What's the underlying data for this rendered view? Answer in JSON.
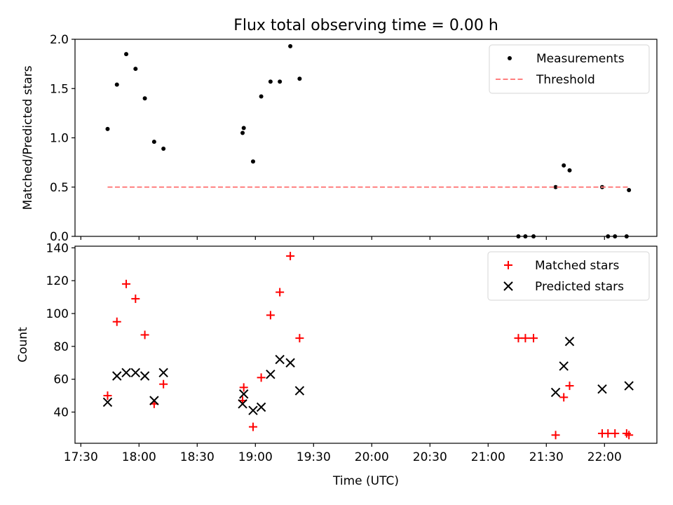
{
  "title": "Flux total observing time = 0.00 h",
  "xlabel": "Time (UTC)",
  "colors": {
    "measurement": "#000000",
    "threshold": "#ff7f7f",
    "matched": "#ff0000",
    "predicted": "#000000"
  },
  "chart_data": [
    {
      "type": "scatter",
      "panel": "top",
      "title": "Flux total observing time = 0.00 h",
      "xlabel": "",
      "ylabel": "Matched/Predicted stars",
      "xlim": [
        17.45,
        22.45
      ],
      "ylim": [
        0,
        2.0
      ],
      "xticks": [
        17.5,
        18,
        18.5,
        19,
        19.5,
        20,
        20.5,
        21,
        21.5,
        22
      ],
      "yticks": [
        0,
        0.5,
        1.0,
        1.5,
        2.0
      ],
      "ytick_labels": [
        "0.0",
        "0.5",
        "1.0",
        "1.5",
        "2.0"
      ],
      "legend": {
        "position": "top-right",
        "entries": [
          "Measurements",
          "Threshold"
        ]
      },
      "series": [
        {
          "name": "Measurements",
          "marker": "dot",
          "x": [
            17.73,
            17.81,
            17.89,
            17.97,
            18.05,
            18.13,
            18.21,
            18.89,
            18.9,
            18.98,
            19.05,
            19.13,
            19.21,
            19.3,
            19.38,
            21.26,
            21.32,
            21.39,
            21.58,
            21.65,
            21.7,
            21.98,
            22.03,
            22.09,
            22.19,
            22.21
          ],
          "y": [
            1.09,
            1.54,
            1.85,
            1.7,
            1.4,
            0.96,
            0.89,
            1.05,
            1.1,
            0.76,
            1.42,
            1.57,
            1.57,
            1.93,
            1.6,
            0.0,
            0.0,
            0.0,
            0.5,
            0.72,
            0.67,
            0.5,
            0.0,
            0.0,
            0.0,
            0.47
          ]
        },
        {
          "name": "Threshold",
          "style": "dashed-line",
          "x": [
            17.73,
            22.21
          ],
          "y": [
            0.5,
            0.5
          ]
        }
      ]
    },
    {
      "type": "scatter",
      "panel": "bottom",
      "xlabel": "Time (UTC)",
      "ylabel": "Count",
      "xlim": [
        17.45,
        22.45
      ],
      "ylim": [
        21,
        141
      ],
      "xticks": [
        17.5,
        18,
        18.5,
        19,
        19.5,
        20,
        20.5,
        21,
        21.5,
        22
      ],
      "xtick_labels": [
        "17:30",
        "18:00",
        "18:30",
        "19:00",
        "19:30",
        "20:00",
        "20:30",
        "21:00",
        "21:30",
        "22:00"
      ],
      "yticks": [
        40,
        60,
        80,
        100,
        120,
        140
      ],
      "legend": {
        "position": "top-right",
        "entries": [
          "Matched stars",
          "Predicted stars"
        ]
      },
      "series": [
        {
          "name": "Matched stars",
          "marker": "plus",
          "x": [
            17.73,
            17.81,
            17.89,
            17.97,
            18.05,
            18.13,
            18.21,
            18.89,
            18.9,
            18.98,
            19.05,
            19.13,
            19.21,
            19.3,
            19.38,
            21.26,
            21.32,
            21.39,
            21.58,
            21.65,
            21.7,
            21.98,
            22.03,
            22.09,
            22.19,
            22.21
          ],
          "y": [
            50,
            95,
            118,
            109,
            87,
            45,
            57,
            47,
            55,
            31,
            61,
            99,
            113,
            135,
            85,
            85,
            85,
            85,
            26,
            49,
            56,
            27,
            27,
            27,
            27,
            26
          ]
        },
        {
          "name": "Predicted stars",
          "marker": "x",
          "x": [
            17.73,
            17.81,
            17.89,
            17.97,
            18.05,
            18.13,
            18.21,
            18.89,
            18.9,
            18.98,
            19.05,
            19.13,
            19.21,
            19.3,
            19.38,
            21.58,
            21.65,
            21.7,
            21.98,
            22.21
          ],
          "y": [
            46,
            62,
            64,
            64,
            62,
            47,
            64,
            45,
            51,
            41,
            43,
            63,
            72,
            70,
            53,
            52,
            68,
            83,
            54,
            56
          ]
        }
      ]
    }
  ]
}
